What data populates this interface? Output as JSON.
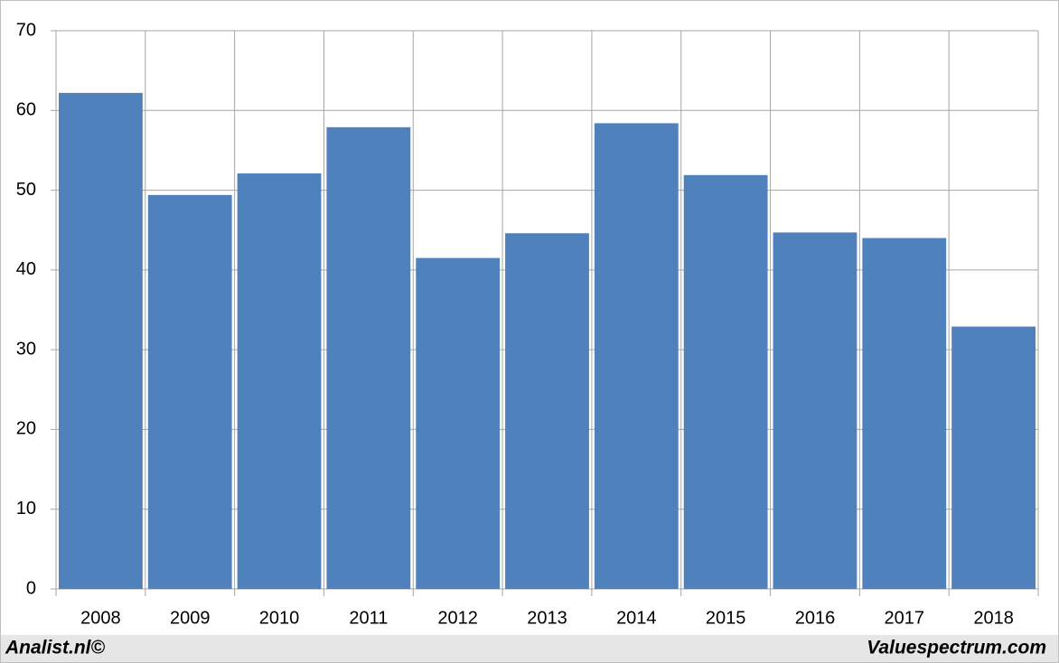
{
  "chart_data": {
    "type": "bar",
    "categories": [
      "2008",
      "2009",
      "2010",
      "2011",
      "2012",
      "2013",
      "2014",
      "2015",
      "2016",
      "2017",
      "2018"
    ],
    "values": [
      62.2,
      49.4,
      52.1,
      57.9,
      41.5,
      44.6,
      58.4,
      51.9,
      44.7,
      44.0,
      32.9
    ],
    "color": "#4f81bd",
    "ylim": [
      0,
      70
    ],
    "yticks": [
      0,
      10,
      20,
      30,
      40,
      50,
      60,
      70
    ],
    "grid": true,
    "footer_left": "Analist.nl©",
    "footer_right": "Valuespectrum.com"
  }
}
